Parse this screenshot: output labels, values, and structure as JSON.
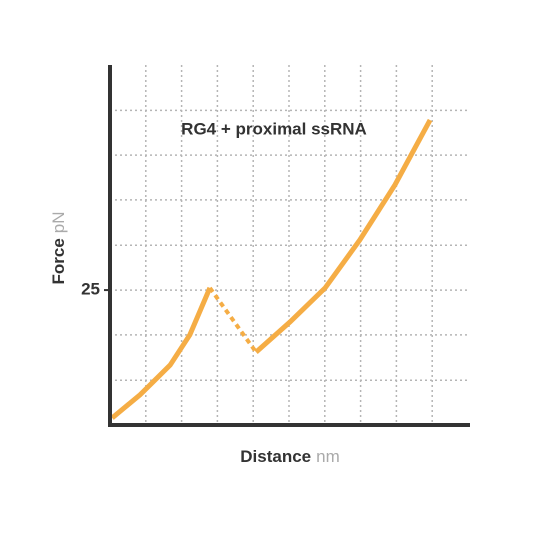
{
  "chart_data": {
    "type": "line",
    "title": "RG4 + proximal ssRNA",
    "ylabel": "Force",
    "yunit": "pN",
    "xlabel": "Distance",
    "xunit": "nm",
    "xlim": [
      0,
      10
    ],
    "ylim": [
      0,
      66.7
    ],
    "yticks": [
      25
    ],
    "grid": true,
    "xgrid": [
      1,
      2,
      3,
      4,
      5,
      6,
      7,
      8,
      9
    ],
    "ygrid": [
      8.3,
      16.7,
      25,
      33.3,
      41.7,
      50,
      58.3
    ],
    "series": [
      {
        "style": "solid",
        "color": "#f5ad45",
        "x": [
          0.06,
          0.84,
          1.68,
          2.23,
          2.79,
          null,
          4.08,
          5.03,
          6.01,
          6.98,
          7.96,
          8.94
        ],
        "values": [
          1.3,
          5.6,
          11.1,
          16.7,
          25.4,
          null,
          13.5,
          19.1,
          25.4,
          34.3,
          44.5,
          56.5
        ]
      },
      {
        "style": "dashed",
        "color": "#f5ad45",
        "x": [
          2.79,
          4.08
        ],
        "values": [
          25.4,
          13.5
        ]
      }
    ]
  }
}
